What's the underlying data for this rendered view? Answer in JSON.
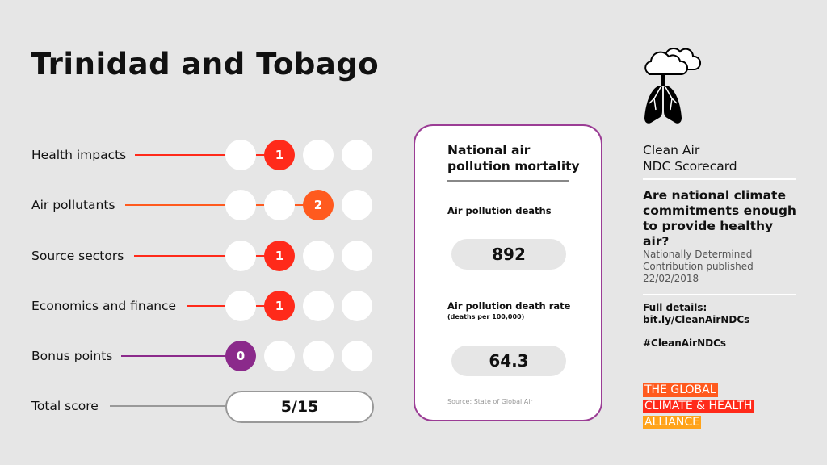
{
  "title": "Trinidad and Tobago",
  "rows": [
    {
      "label": "Health impacts",
      "score": "1",
      "filled_index": 1,
      "color": "#ff2a1a"
    },
    {
      "label": "Air pollutants",
      "score": "2",
      "filled_index": 2,
      "color": "#ff5a1e"
    },
    {
      "label": "Source sectors",
      "score": "1",
      "filled_index": 1,
      "color": "#ff2a1a"
    },
    {
      "label": "Economics and finance",
      "score": "1",
      "filled_index": 1,
      "color": "#ff2a1a"
    },
    {
      "label": "Bonus points",
      "score": "0",
      "filled_index": 0,
      "color": "#8b2a8b"
    }
  ],
  "total": {
    "label": "Total score",
    "value": "5/15"
  },
  "card": {
    "heading_1": "National air",
    "heading_2": "pollution mortality",
    "deaths_label": "Air pollution deaths",
    "deaths": "892",
    "rate_label": "Air pollution death rate",
    "rate_sub": "(deaths per 100,000)",
    "rate": "64.3",
    "source": "Source: State of Global Air"
  },
  "side": {
    "icon": "cloud-lungs-icon",
    "title_1": "Clean Air",
    "title_2": "NDC Scorecard",
    "question": "Are national climate commitments enough to provide healthy air?",
    "ndc_1": "Nationally Determined",
    "ndc_2": "Contribution published",
    "ndc_date": "22/02/2018",
    "details_label": "Full details:",
    "details_link": "bit.ly/CleanAirNDCs",
    "hashtag": "#CleanAirNDCs"
  },
  "logo": {
    "line1": "THE GLOBAL",
    "line2": "CLIMATE & HEALTH",
    "line3": "ALLIANCE",
    "colors": [
      "#ff5a1e",
      "#ff2a1a",
      "#ffa31a"
    ]
  }
}
